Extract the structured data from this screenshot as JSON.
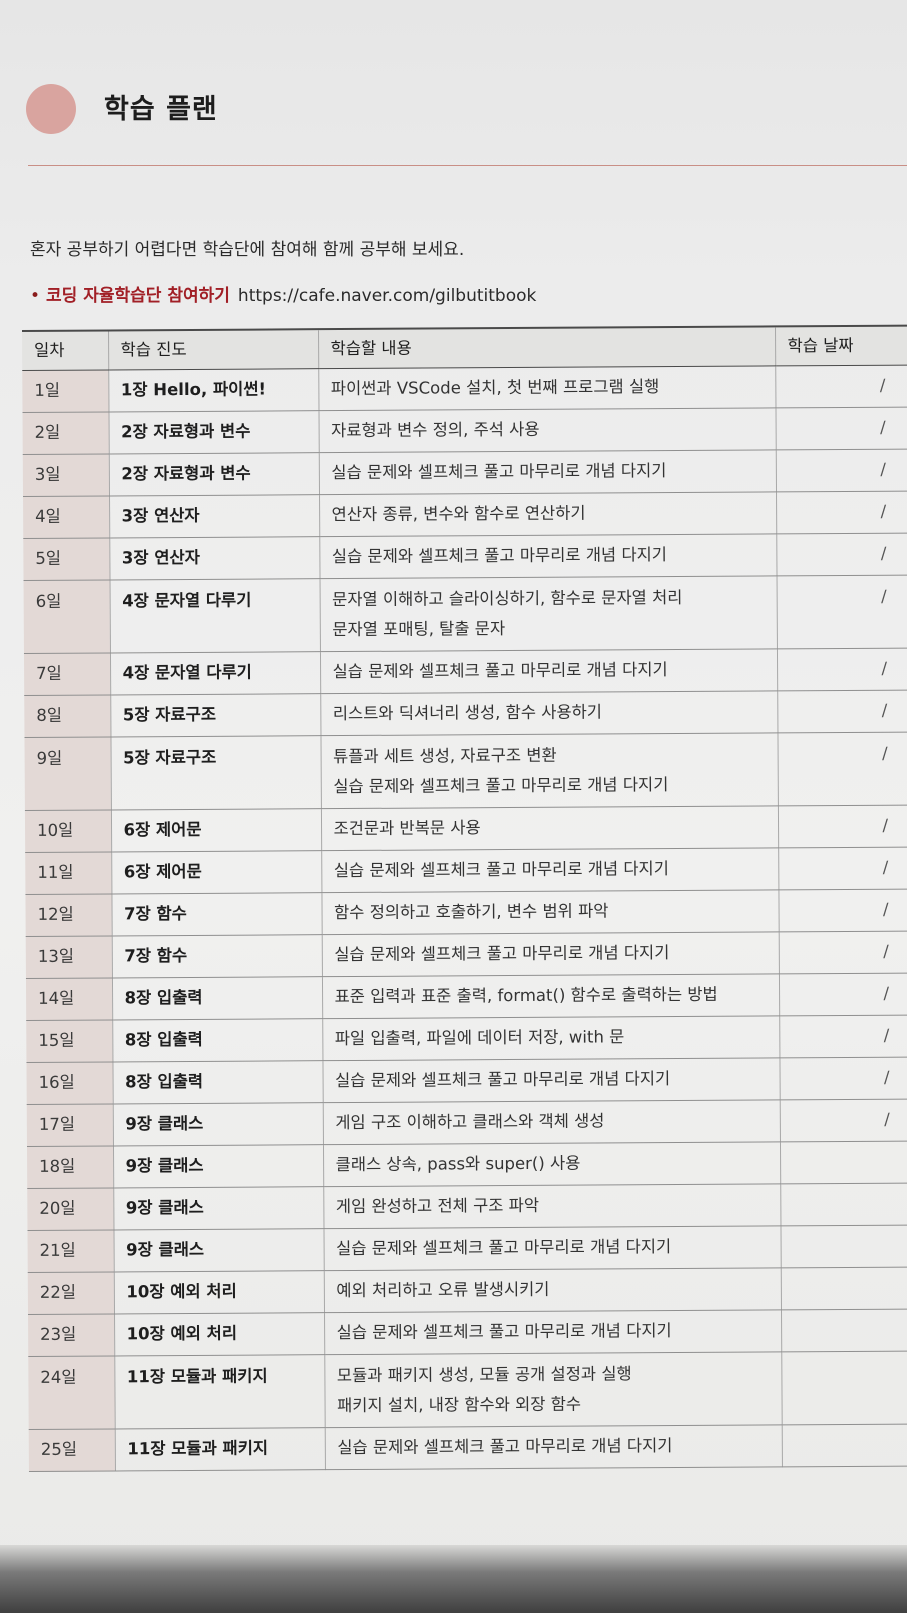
{
  "header": {
    "title": "학습 플랜"
  },
  "intro": "혼자 공부하기 어렵다면 학습단에 참여해 함께 공부해 보세요.",
  "link": {
    "bullet": "•",
    "label": "코딩 자율학습단 참여하기",
    "url": "https://cafe.naver.com/gilbutitbook"
  },
  "table": {
    "headers": [
      "일차",
      "학습 진도",
      "학습할 내용",
      "학습 날짜"
    ],
    "rows": [
      {
        "day": "1일",
        "chapter": "1장 Hello, 파이썬!",
        "content": [
          "파이썬과 VSCode 설치, 첫 번째 프로그램 실행"
        ],
        "date": "/"
      },
      {
        "day": "2일",
        "chapter": "2장 자료형과 변수",
        "content": [
          "자료형과 변수 정의, 주석 사용"
        ],
        "date": "/"
      },
      {
        "day": "3일",
        "chapter": "2장 자료형과 변수",
        "content": [
          "실습 문제와 셀프체크 풀고 마무리로 개념 다지기"
        ],
        "date": "/"
      },
      {
        "day": "4일",
        "chapter": "3장 연산자",
        "content": [
          "연산자 종류, 변수와 함수로 연산하기"
        ],
        "date": "/"
      },
      {
        "day": "5일",
        "chapter": "3장 연산자",
        "content": [
          "실습 문제와 셀프체크 풀고 마무리로 개념 다지기"
        ],
        "date": "/"
      },
      {
        "day": "6일",
        "chapter": "4장 문자열 다루기",
        "content": [
          "문자열 이해하고 슬라이싱하기, 함수로 문자열 처리",
          "문자열 포매팅, 탈출 문자"
        ],
        "date": "/"
      },
      {
        "day": "7일",
        "chapter": "4장 문자열 다루기",
        "content": [
          "실습 문제와 셀프체크 풀고 마무리로 개념 다지기"
        ],
        "date": "/"
      },
      {
        "day": "8일",
        "chapter": "5장 자료구조",
        "content": [
          "리스트와 딕셔너리 생성, 함수 사용하기"
        ],
        "date": "/"
      },
      {
        "day": "9일",
        "chapter": "5장 자료구조",
        "content": [
          "튜플과 세트 생성, 자료구조 변환",
          "실습 문제와 셀프체크 풀고 마무리로 개념 다지기"
        ],
        "date": "/"
      },
      {
        "day": "10일",
        "chapter": "6장 제어문",
        "content": [
          "조건문과 반복문 사용"
        ],
        "date": "/"
      },
      {
        "day": "11일",
        "chapter": "6장 제어문",
        "content": [
          "실습 문제와 셀프체크 풀고 마무리로 개념 다지기"
        ],
        "date": "/"
      },
      {
        "day": "12일",
        "chapter": "7장 함수",
        "content": [
          "함수 정의하고 호출하기, 변수 범위 파악"
        ],
        "date": "/"
      },
      {
        "day": "13일",
        "chapter": "7장 함수",
        "content": [
          "실습 문제와 셀프체크 풀고 마무리로 개념 다지기"
        ],
        "date": "/"
      },
      {
        "day": "14일",
        "chapter": "8장 입출력",
        "content": [
          "표준 입력과 표준 출력, format() 함수로 출력하는 방법"
        ],
        "date": "/"
      },
      {
        "day": "15일",
        "chapter": "8장 입출력",
        "content": [
          "파일 입출력, 파일에 데이터 저장, with 문"
        ],
        "date": "/"
      },
      {
        "day": "16일",
        "chapter": "8장 입출력",
        "content": [
          "실습 문제와 셀프체크 풀고 마무리로 개념 다지기"
        ],
        "date": "/"
      },
      {
        "day": "17일",
        "chapter": "9장 클래스",
        "content": [
          "게임 구조 이해하고 클래스와 객체 생성"
        ],
        "date": "/"
      },
      {
        "day": "18일",
        "chapter": "9장 클래스",
        "content": [
          "클래스 상속, pass와 super() 사용"
        ],
        "date": ""
      },
      {
        "day": "20일",
        "chapter": "9장 클래스",
        "content": [
          "게임 완성하고 전체 구조 파악"
        ],
        "date": ""
      },
      {
        "day": "21일",
        "chapter": "9장 클래스",
        "content": [
          "실습 문제와 셀프체크 풀고 마무리로 개념 다지기"
        ],
        "date": ""
      },
      {
        "day": "22일",
        "chapter": "10장 예외 처리",
        "content": [
          "예외 처리하고 오류 발생시키기"
        ],
        "date": ""
      },
      {
        "day": "23일",
        "chapter": "10장 예외 처리",
        "content": [
          "실습 문제와 셀프체크 풀고 마무리로 개념 다지기"
        ],
        "date": ""
      },
      {
        "day": "24일",
        "chapter": "11장 모듈과 패키지",
        "content": [
          "모듈과 패키지 생성, 모듈 공개 설정과 실행",
          "패키지 설치, 내장 함수와 외장 함수"
        ],
        "date": ""
      },
      {
        "day": "25일",
        "chapter": "11장 모듈과 패키지",
        "content": [
          "실습 문제와 셀프체크 풀고 마무리로 개념 다지기"
        ],
        "date": ""
      }
    ]
  }
}
